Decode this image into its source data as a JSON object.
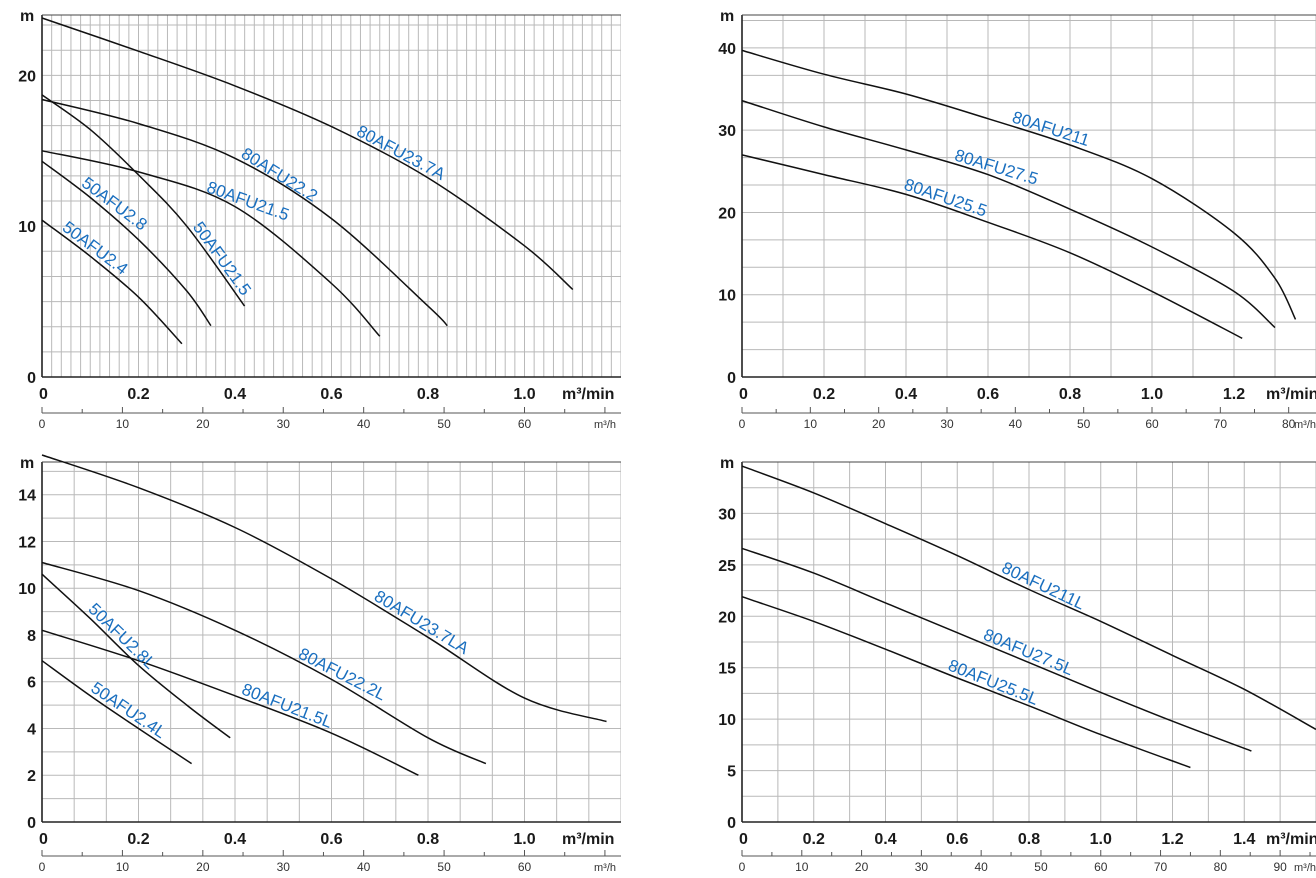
{
  "chart_data": [
    {
      "type": "line",
      "y_unit": "m",
      "x_unit": "m³/min",
      "x2_unit": "m³/h",
      "x_ticks": [
        "0",
        "0.2",
        "0.4",
        "0.6",
        "0.8",
        "1.0"
      ],
      "x2_ticks": [
        "0",
        "10",
        "20",
        "30",
        "40",
        "50",
        "60"
      ],
      "y_ticks": [
        "0",
        "10",
        "20"
      ],
      "xlim": [
        0,
        1.2
      ],
      "ylim": [
        0,
        24
      ],
      "grid": true,
      "label_color": "#1a6fbf",
      "series": [
        {
          "name": "80AFU23.7A",
          "label_at": 0.55,
          "x": [
            0,
            0.2,
            0.4,
            0.6,
            0.8,
            1.0,
            1.1
          ],
          "y": [
            23.8,
            21.6,
            19.3,
            16.6,
            13.2,
            8.7,
            5.8
          ]
        },
        {
          "name": "80AFU22.2",
          "label_at": 0.42,
          "x": [
            0,
            0.2,
            0.4,
            0.6,
            0.8,
            0.84
          ],
          "y": [
            18.4,
            16.8,
            14.5,
            10.5,
            4.7,
            3.4
          ]
        },
        {
          "name": "80AFU21.5",
          "label_at": 0.44,
          "x": [
            0,
            0.2,
            0.4,
            0.6,
            0.7
          ],
          "y": [
            15.0,
            13.6,
            11.3,
            6.2,
            2.7
          ]
        },
        {
          "name": "50AFU21.5",
          "label_at": 0.78,
          "x": [
            0,
            0.1,
            0.2,
            0.3,
            0.42
          ],
          "y": [
            18.7,
            16.4,
            13.4,
            10.0,
            4.7
          ]
        },
        {
          "name": "50AFU2.8",
          "label_at": 0.22,
          "x": [
            0,
            0.1,
            0.2,
            0.3,
            0.35
          ],
          "y": [
            14.3,
            11.9,
            9.1,
            5.7,
            3.4
          ]
        },
        {
          "name": "50AFU2.4",
          "label_at": 0.16,
          "x": [
            0,
            0.1,
            0.2,
            0.29
          ],
          "y": [
            10.4,
            8.0,
            5.3,
            2.2
          ]
        }
      ]
    },
    {
      "type": "line",
      "y_unit": "m",
      "x_unit": "m³/min",
      "x2_unit": "m³/h",
      "x_ticks": [
        "0",
        "0.2",
        "0.4",
        "0.6",
        "0.8",
        "1.0",
        "1.2"
      ],
      "x2_ticks": [
        "0",
        "10",
        "20",
        "30",
        "40",
        "50",
        "60",
        "70",
        "80"
      ],
      "y_ticks": [
        "0",
        "10",
        "20",
        "30",
        "40"
      ],
      "xlim": [
        0,
        1.4
      ],
      "ylim": [
        0,
        44
      ],
      "grid": true,
      "label_color": "#1a6fbf",
      "series": [
        {
          "name": "80AFU211",
          "label_at": 0.42,
          "x": [
            0,
            0.2,
            0.4,
            0.6,
            0.8,
            1.0,
            1.2,
            1.3,
            1.35
          ],
          "y": [
            39.7,
            36.8,
            34.4,
            31.4,
            28.2,
            24.1,
            17.5,
            12.0,
            7.0
          ]
        },
        {
          "name": "80AFU27.5",
          "label_at": 0.38,
          "x": [
            0,
            0.2,
            0.4,
            0.6,
            0.8,
            1.0,
            1.2,
            1.3
          ],
          "y": [
            33.6,
            30.4,
            27.6,
            24.6,
            20.4,
            15.8,
            10.4,
            6.0
          ]
        },
        {
          "name": "80AFU25.5",
          "label_at": 0.34,
          "x": [
            0,
            0.2,
            0.4,
            0.6,
            0.8,
            1.0,
            1.22
          ],
          "y": [
            27.0,
            24.6,
            22.2,
            18.8,
            15.1,
            10.4,
            4.7
          ]
        }
      ]
    },
    {
      "type": "line",
      "y_unit": "m",
      "x_unit": "m³/min",
      "x2_unit": "m³/h",
      "x_ticks": [
        "0",
        "0.2",
        "0.4",
        "0.6",
        "0.8",
        "1.0"
      ],
      "x2_ticks": [
        "0",
        "10",
        "20",
        "30",
        "40",
        "50",
        "60"
      ],
      "y_ticks": [
        "0",
        "2",
        "4",
        "6",
        "8",
        "10",
        "12",
        "14"
      ],
      "xlim": [
        0,
        1.2
      ],
      "ylim": [
        0,
        15.4
      ],
      "grid": true,
      "label_color": "#1a6fbf",
      "series": [
        {
          "name": "80AFU23.7LA",
          "label_at": 0.58,
          "x": [
            0,
            0.2,
            0.4,
            0.6,
            0.8,
            1.0,
            1.17
          ],
          "y": [
            15.7,
            14.3,
            12.6,
            10.4,
            7.9,
            5.3,
            4.3
          ]
        },
        {
          "name": "80AFU22.2L",
          "label_at": 0.54,
          "x": [
            0,
            0.2,
            0.4,
            0.6,
            0.8,
            0.92
          ],
          "y": [
            11.1,
            9.9,
            8.2,
            6.1,
            3.6,
            2.5
          ]
        },
        {
          "name": "80AFU21.5L",
          "label_at": 0.53,
          "x": [
            0,
            0.2,
            0.4,
            0.6,
            0.78
          ],
          "y": [
            8.2,
            6.9,
            5.4,
            3.8,
            2.0
          ]
        },
        {
          "name": "50AFU2.8L",
          "label_at": 0.25,
          "x": [
            0,
            0.1,
            0.2,
            0.3,
            0.39
          ],
          "y": [
            10.6,
            8.7,
            6.7,
            5.0,
            3.6
          ]
        },
        {
          "name": "50AFU2.4L",
          "label_at": 0.36,
          "x": [
            0,
            0.1,
            0.2,
            0.31
          ],
          "y": [
            6.9,
            5.4,
            4.0,
            2.5
          ]
        }
      ]
    },
    {
      "type": "line",
      "y_unit": "m",
      "x_unit": "m³/min",
      "x2_unit": "m³/h",
      "x_ticks": [
        "0",
        "0.2",
        "0.4",
        "0.6",
        "0.8",
        "1.0",
        "1.2",
        "1.4"
      ],
      "x2_ticks": [
        "0",
        "10",
        "20",
        "30",
        "40",
        "50",
        "60",
        "70",
        "80",
        "90"
      ],
      "y_ticks": [
        "0",
        "5",
        "10",
        "15",
        "20",
        "25",
        "30"
      ],
      "xlim": [
        0,
        1.6
      ],
      "ylim": [
        0,
        35
      ],
      "grid": true,
      "label_color": "#1a6fbf",
      "series": [
        {
          "name": "80AFU211L",
          "label_at": 0.46,
          "x": [
            0,
            0.2,
            0.4,
            0.6,
            0.8,
            1.0,
            1.2,
            1.4,
            1.6
          ],
          "y": [
            34.6,
            32.0,
            29.0,
            25.9,
            22.6,
            19.5,
            16.2,
            12.9,
            9.0
          ]
        },
        {
          "name": "80AFU27.5L",
          "label_at": 0.49,
          "x": [
            0,
            0.2,
            0.4,
            0.6,
            0.8,
            1.0,
            1.2,
            1.42
          ],
          "y": [
            26.6,
            24.2,
            21.3,
            18.4,
            15.5,
            12.6,
            9.8,
            6.9
          ]
        },
        {
          "name": "80AFU25.5L",
          "label_at": 0.49,
          "x": [
            0,
            0.2,
            0.4,
            0.6,
            0.8,
            1.0,
            1.25
          ],
          "y": [
            21.9,
            19.5,
            16.8,
            14.0,
            11.3,
            8.5,
            5.3
          ]
        }
      ]
    }
  ]
}
